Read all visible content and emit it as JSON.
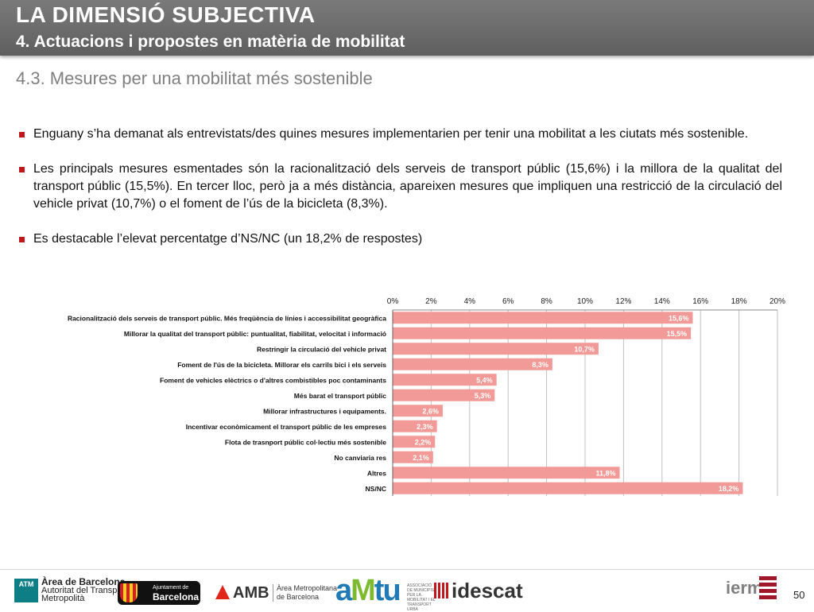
{
  "header": {
    "title": "LA DIMENSIÓ SUBJECTIVA",
    "subtitle": "4. Actuacions i propostes en matèria de mobilitat"
  },
  "section_title": "4.3. Mesures per una mobilitat més sostenible",
  "bullets": [
    "Enguany s’ha demanat als entrevistats/des quines mesures implementarien per tenir una mobilitat a les ciutats més sostenible.",
    "Les principals mesures esmentades són la racionalització dels serveis de transport públic (15,6%) i la millora de la qualitat del transport públic (15,5%). En tercer lloc, però ja a més distància, apareixen mesures que impliquen una restricció de la circulació del vehicle privat (10,7%) o el foment de l’ús de la bicicleta (8,3%).",
    "Es destacable l’elevat percentatge d’NS/NC (un 18,2% de respostes)"
  ],
  "chart_data": {
    "type": "bar",
    "orientation": "horizontal",
    "categories": [
      "Racionalització dels serveis de transport públic. Més freqüència de línies i accessibilitat geogràfica",
      "Millorar la qualitat del transport públic: puntualitat, fiabilitat, velocitat i informació",
      "Restringir la circulació del vehicle privat",
      "Foment de l'ús de la bicicleta. Millorar els carrils bici i els serveis",
      "Foment de vehicles elèctrics o d'altres combistibles poc contaminants",
      "Més barat el transport públic",
      "Millorar infrastructures i equipaments.",
      "Incentivar econòmicament el transport públic de les empreses",
      "Flota de trasnport públic col·lectiu més sostenible",
      "No canviaria res",
      "Altres",
      "NS/NC"
    ],
    "values": [
      15.6,
      15.5,
      10.7,
      8.3,
      5.4,
      5.3,
      2.6,
      2.3,
      2.2,
      2.1,
      11.8,
      18.2
    ],
    "data_labels": [
      "15,6%",
      "15,5%",
      "10,7%",
      "8,3%",
      "5,4%",
      "5,3%",
      "2,6%",
      "2,3%",
      "2,2%",
      "2,1%",
      "11,8%",
      "18,2%"
    ],
    "x_ticks": [
      0,
      2,
      4,
      6,
      8,
      10,
      12,
      14,
      16,
      18,
      20
    ],
    "x_tick_labels": [
      "0%",
      "2%",
      "4%",
      "6%",
      "8%",
      "10%",
      "12%",
      "14%",
      "16%",
      "18%",
      "20%"
    ],
    "xlim": [
      0,
      20
    ],
    "grid": true,
    "axis_position": "top",
    "bar_color": "#f29a97",
    "grid_color": "#bfbfbf"
  },
  "footer": {
    "atm": {
      "badge": "ATM",
      "line1": "Àrea de Barcelona",
      "line2": "Autoritat del Transport",
      "line3": "Metropolità"
    },
    "barcelona": {
      "line1": "Ajuntament de",
      "line2": "Barcelona"
    },
    "amb": {
      "name": "AMB",
      "line1": "Àrea Metropolitana",
      "line2": "de Barcelona"
    },
    "amtu": {
      "a": "a",
      "m": "M",
      "tu": "tu",
      "sub": "ASSOCIACIÓ DE MUNICIPIS PER LA MOBILITAT I EL TRANSPORT URBÀ"
    },
    "idescat": "idescat",
    "iermb": "ierm",
    "page_number": "50"
  }
}
